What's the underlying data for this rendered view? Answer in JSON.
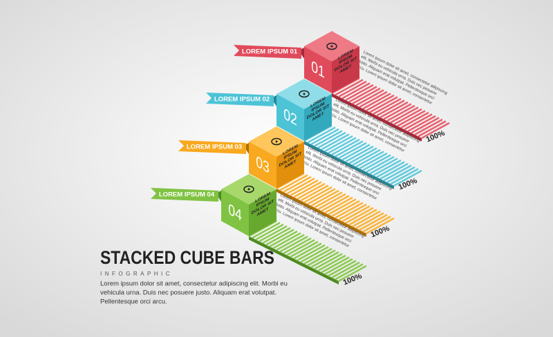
{
  "title": "STACKED CUBE BARS",
  "subtitle": "INFOGRAPHIC",
  "body": [
    "Lorem ipsum dolor sit amet, consectetur adipiscing elit. Morbi eu",
    "vehicula urna. Duis nec posuere justo. Aliquam erat volutpat.",
    "Pellentesque orci arcu."
  ],
  "items": [
    {
      "label": "LOREM IPSUM 01",
      "number": "01",
      "side_text": [
        "LOREM",
        "IPSUM",
        "DOLOR SIT",
        "AMET"
      ],
      "description": [
        "Lorem ipsum dolor sit amet, consectetur adipiscing",
        "elit. Morbi eu vehicula urna. Duis nec posuere",
        "justo. Aliquam erat volutpat. Pellentesque orci",
        "arcu. Lorem ipsum dolor sit amet, consectetur"
      ],
      "percent": "100%"
    },
    {
      "label": "LOREM IPSUM 02",
      "number": "02",
      "side_text": [
        "LOREM",
        "IPSUM",
        "DOLOR SIT",
        "AMET"
      ],
      "description": [
        "Lorem ipsum dolor sit amet, consectetur adipiscing",
        "elit. Morbi eu vehicula urna. Duis nec posuere",
        "justo. Aliquam erat volutpat. Pellentesque orci",
        "arcu. Lorem ipsum dolor sit amet, consectetur"
      ],
      "percent": "100%"
    },
    {
      "label": "LOREM IPSUM 03",
      "number": "03",
      "side_text": [
        "LOREM",
        "IPSUM",
        "DOLOR SIT",
        "AMET"
      ],
      "description": [
        "Lorem ipsum dolor sit amet, consectetur adipiscing",
        "elit. Morbi eu vehicula urna. Duis nec posuere",
        "justo. Aliquam erat volutpat. Pellentesque orci",
        "arcu. Lorem ipsum dolor sit amet, consectetur"
      ],
      "percent": "100%"
    },
    {
      "label": "LOREM IPSUM 04",
      "number": "04",
      "side_text": [
        "LOREM",
        "IPSUM",
        "DOLOR SIT",
        "AMET"
      ],
      "description": [
        "Lorem ipsum dolor sit amet, consectetur adipiscing",
        "elit. Morbi eu vehicula urna. Duis nec posuere",
        "justo. Aliquam erat volutpat. Pellentesque orci",
        "arcu. Lorem ipsum dolor sit amet, consectetur"
      ],
      "percent": "100%"
    }
  ]
}
